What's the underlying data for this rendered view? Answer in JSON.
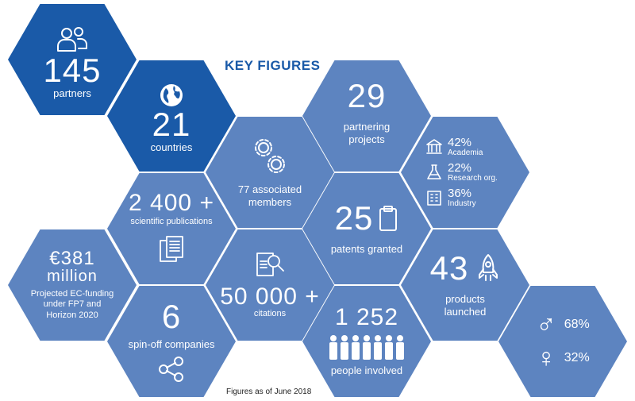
{
  "title": "KEY FIGURES",
  "footnote": "Figures as of June 2018",
  "colors": {
    "dark": "#1a5aa8",
    "light": "#5d84c0",
    "title": "#1a5aa8"
  },
  "tiles": {
    "partners": {
      "value": "145",
      "label": "partners",
      "icon": "people-icon"
    },
    "countries": {
      "value": "21",
      "label": "countries",
      "icon": "globe-icon"
    },
    "members": {
      "label_line1": "77 associated",
      "label_line2": "members",
      "icon": "gears-icon"
    },
    "projects": {
      "value": "29",
      "label_line1": "partnering",
      "label_line2": "projects"
    },
    "breakdown": [
      {
        "pct": "42%",
        "label": "Academia",
        "icon": "university-icon"
      },
      {
        "pct": "22%",
        "label": "Research org.",
        "icon": "flask-icon"
      },
      {
        "pct": "36%",
        "label": "Industry",
        "icon": "building-icon"
      }
    ],
    "publications": {
      "value": "2 400 +",
      "label": "scientific publications",
      "icon": "documents-icon"
    },
    "patents": {
      "value": "25",
      "label": "patents granted",
      "icon": "clipboard-icon"
    },
    "funding": {
      "value": "€381",
      "value_line2": "million",
      "label_line1": "Projected EC-funding",
      "label_line2": "under FP7 and",
      "label_line3": "Horizon 2020"
    },
    "citations": {
      "value": "50 000 +",
      "label": "citations",
      "icon": "search-document-icon"
    },
    "products": {
      "value": "43",
      "label_line1": "products",
      "label_line2": "launched",
      "icon": "rocket-icon"
    },
    "spinoff": {
      "value": "6",
      "label": "spin-off companies",
      "icon": "share-icon"
    },
    "people": {
      "value": "1 252",
      "label": "people involved",
      "icon": "crowd-icon"
    },
    "gender": [
      {
        "symbol": "♂",
        "pct": "68%",
        "icon": "male-icon"
      },
      {
        "symbol": "♀",
        "pct": "32%",
        "icon": "female-icon"
      }
    ]
  }
}
